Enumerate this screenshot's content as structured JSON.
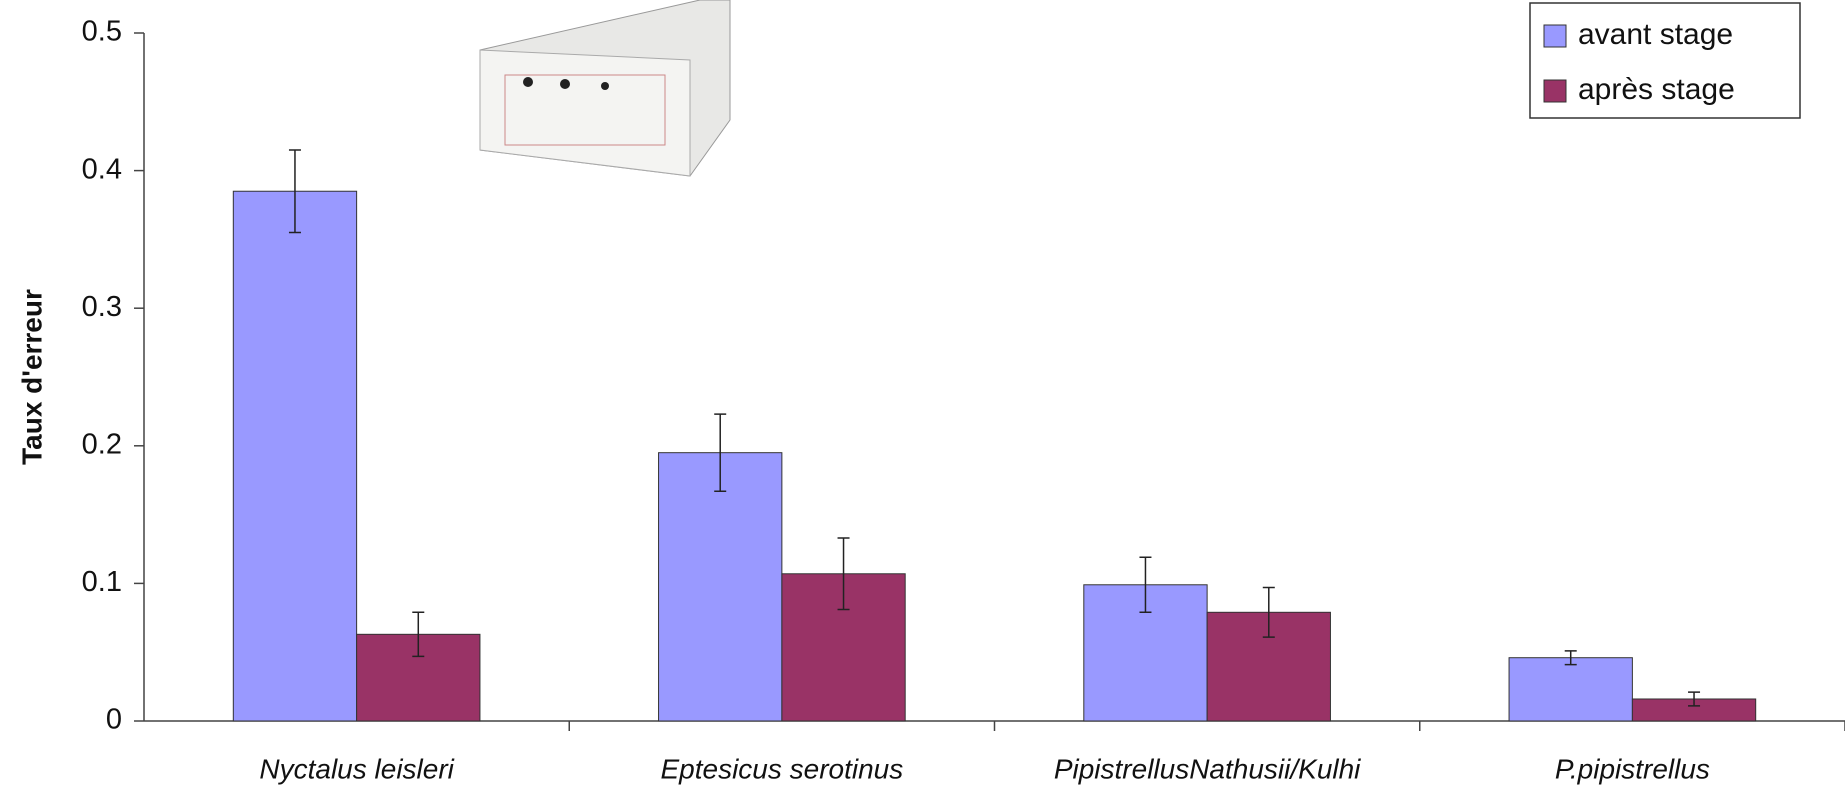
{
  "chart_data": {
    "type": "bar",
    "y_label": "Taux d'erreur",
    "categories": [
      "Nyctalus leisleri",
      "Eptesicus serotinus",
      "PipistrellusNathusii/Kulhi",
      "P.pipistrellus"
    ],
    "series": [
      {
        "name": "avant stage",
        "color": "#9999ff",
        "values": [
          0.385,
          0.195,
          0.099,
          0.046
        ],
        "errors": [
          0.03,
          0.028,
          0.02,
          0.005
        ]
      },
      {
        "name": "après stage",
        "color": "#993366",
        "values": [
          0.063,
          0.107,
          0.079,
          0.016
        ],
        "errors": [
          0.016,
          0.026,
          0.018,
          0.005
        ]
      }
    ],
    "ylim": [
      0,
      0.5
    ],
    "yticks": [
      0,
      0.1,
      0.2,
      0.3,
      0.4,
      0.5
    ],
    "legend": "top-right"
  }
}
